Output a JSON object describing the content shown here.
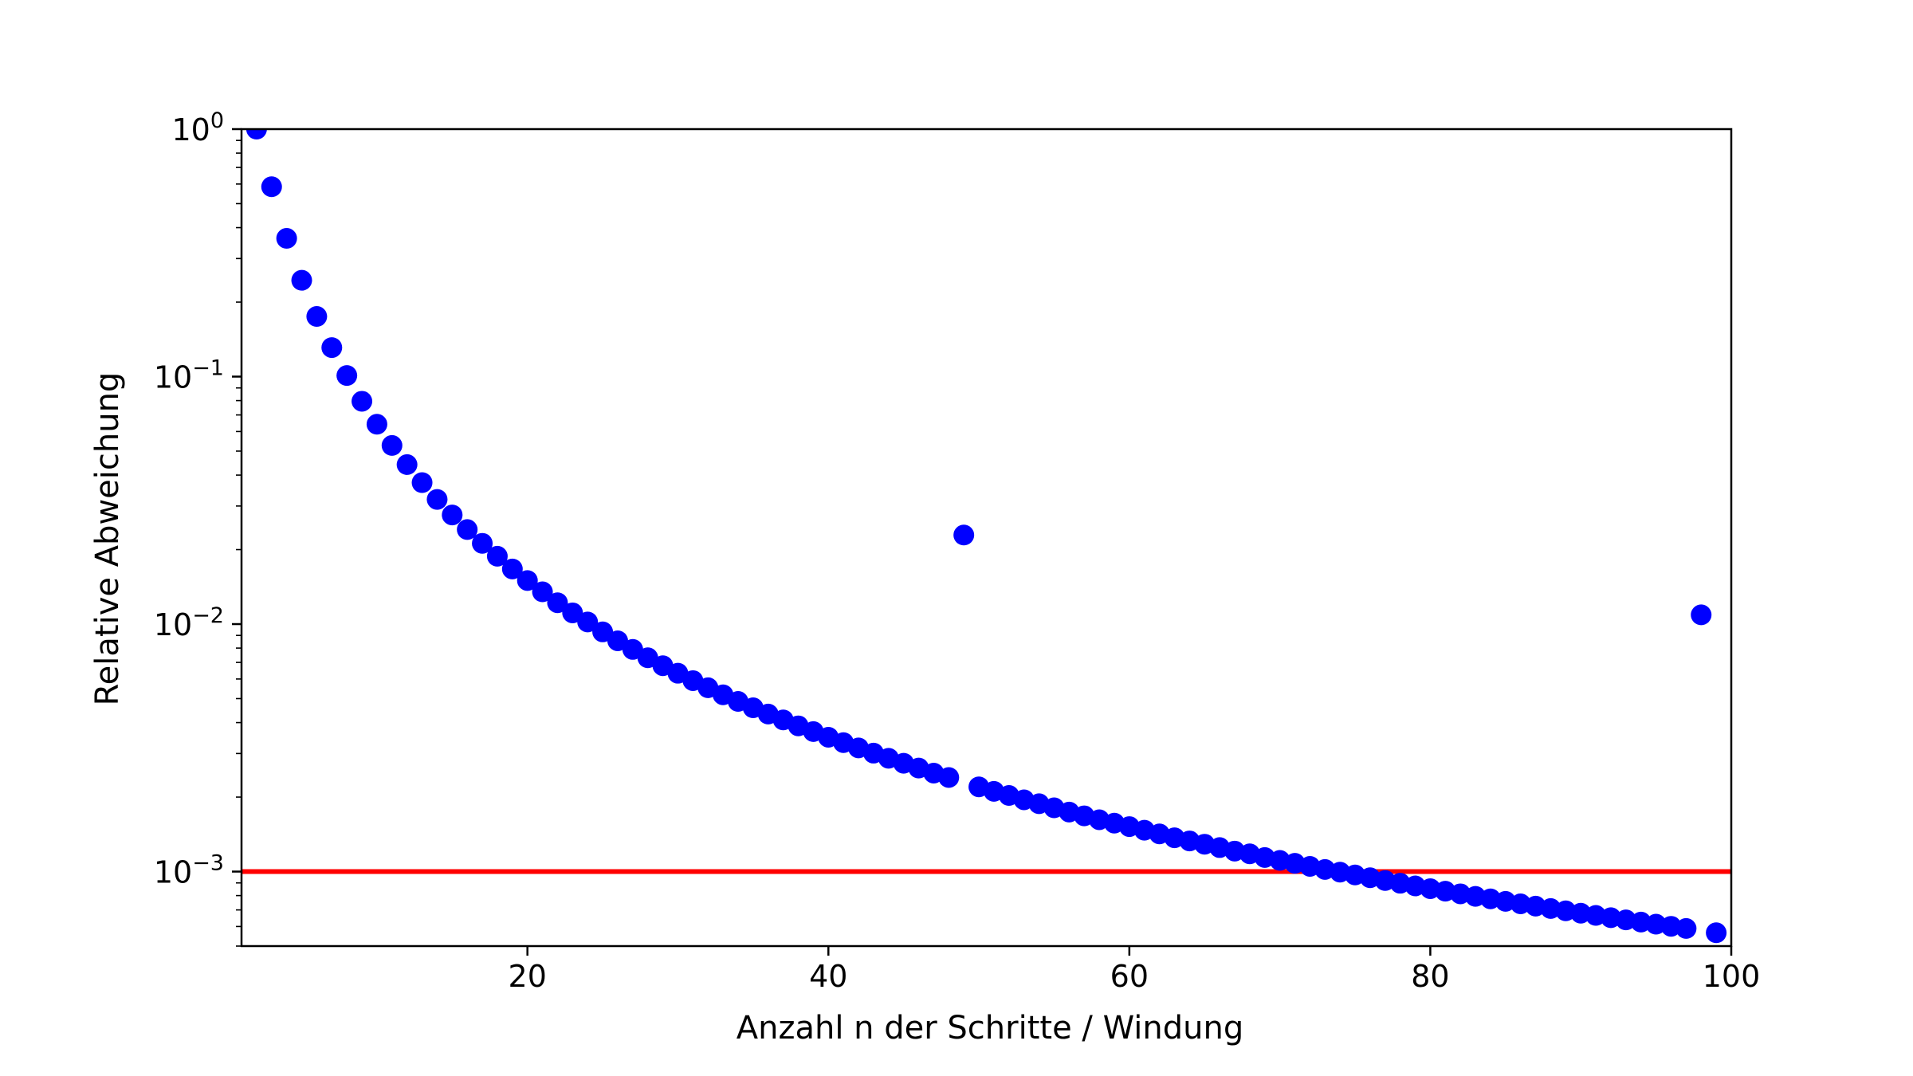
{
  "chart_data": {
    "type": "scatter",
    "title": "",
    "xlabel": "Anzahl n der Schritte / Windung",
    "ylabel": "Relative Abweichung",
    "xlim": [
      1,
      100
    ],
    "ylim": [
      0.0005,
      1.0
    ],
    "yscale": "log",
    "grid": false,
    "x_ticks": [
      20,
      40,
      60,
      80,
      100
    ],
    "y_ticks": [
      {
        "value": 1,
        "base": "10",
        "exponent": "0"
      },
      {
        "value": 0.1,
        "base": "10",
        "exponent": "−1"
      },
      {
        "value": 0.01,
        "base": "10",
        "exponent": "−2"
      },
      {
        "value": 0.001,
        "base": "10",
        "exponent": "−3"
      }
    ],
    "reference_line": {
      "y": 0.001,
      "color": "#ff0000"
    },
    "marker_color": "#0000ff",
    "series": [
      {
        "x": [
          2,
          3,
          4,
          5,
          6,
          7,
          8,
          9,
          10,
          11,
          12,
          13,
          14,
          15,
          16,
          17,
          18,
          19,
          20,
          21,
          22,
          23,
          24,
          25,
          26,
          27,
          28,
          29,
          30,
          31,
          32,
          33,
          34,
          35,
          36,
          37,
          38,
          39,
          40,
          41,
          42,
          43,
          44,
          45,
          46,
          47,
          48,
          49,
          50,
          51,
          52,
          53,
          54,
          55,
          56,
          57,
          58,
          59,
          60,
          61,
          62,
          63,
          64,
          65,
          66,
          67,
          68,
          69,
          70,
          71,
          72,
          73,
          74,
          75,
          76,
          77,
          78,
          79,
          80,
          81,
          82,
          83,
          84,
          85,
          86,
          87,
          88,
          89,
          90,
          91,
          92,
          93,
          94,
          95,
          96,
          97,
          98,
          99
        ],
        "y": [
          1.0,
          0.585,
          0.362,
          0.245,
          0.175,
          0.131,
          0.101,
          0.0795,
          0.0642,
          0.0527,
          0.0441,
          0.0373,
          0.0319,
          0.0276,
          0.0241,
          0.0212,
          0.0188,
          0.0167,
          0.015,
          0.0135,
          0.0122,
          0.0111,
          0.0102,
          0.0093,
          0.00856,
          0.0079,
          0.00731,
          0.00679,
          0.00633,
          0.00591,
          0.00553,
          0.00518,
          0.00487,
          0.00459,
          0.00433,
          0.0041,
          0.00388,
          0.00368,
          0.00349,
          0.00332,
          0.00316,
          0.00301,
          0.00287,
          0.00274,
          0.00262,
          0.0025,
          0.0024,
          0.0229,
          0.0022,
          0.00211,
          0.00203,
          0.00195,
          0.00188,
          0.00181,
          0.00174,
          0.00168,
          0.00162,
          0.00157,
          0.00152,
          0.00147,
          0.00142,
          0.00137,
          0.00133,
          0.00129,
          0.00125,
          0.00121,
          0.00118,
          0.00114,
          0.00111,
          0.00108,
          0.00105,
          0.00102,
          0.000995,
          0.000969,
          0.000944,
          0.00092,
          0.000897,
          0.000875,
          0.000853,
          0.000833,
          0.000813,
          0.000794,
          0.000776,
          0.000758,
          0.000741,
          0.000725,
          0.000709,
          0.000694,
          0.000679,
          0.000665,
          0.000651,
          0.000638,
          0.000625,
          0.000613,
          0.000601,
          0.000589,
          0.0109,
          0.000566
        ]
      }
    ]
  }
}
